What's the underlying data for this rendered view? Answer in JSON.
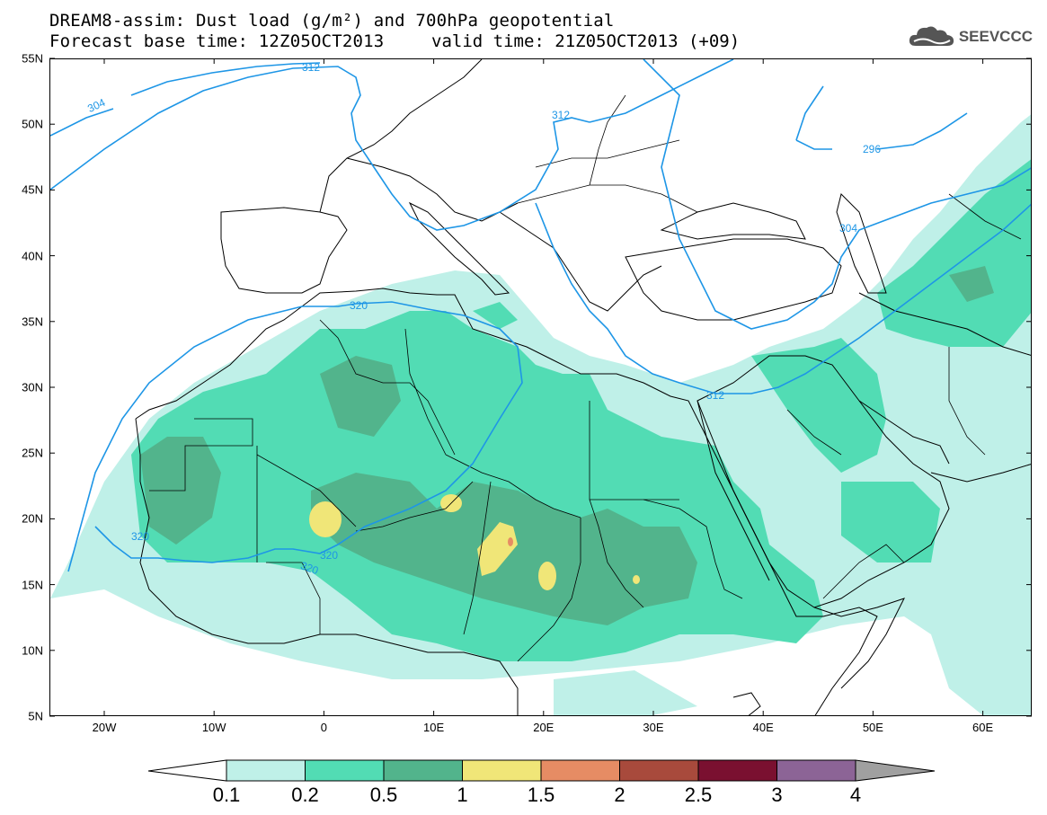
{
  "header": {
    "title_line1": "DREAM8-assim: Dust load (g/m²) and 700hPa geopotential",
    "title_line2_left": "Forecast base time: 12Z05OCT2013",
    "title_line2_right": "valid time: 21Z05OCT2013 (+09)",
    "logo_text": "SEEVCCC"
  },
  "axes": {
    "lat_labels": [
      "55N",
      "50N",
      "45N",
      "40N",
      "35N",
      "30N",
      "25N",
      "20N",
      "15N",
      "10N",
      "5N"
    ],
    "lon_labels": [
      "20W",
      "10W",
      "0",
      "10E",
      "20E",
      "30E",
      "40E",
      "50E",
      "60E"
    ]
  },
  "contours": {
    "labels": [
      "312",
      "304",
      "312",
      "296",
      "304",
      "320",
      "312",
      "320",
      "320",
      "320"
    ]
  },
  "colorbar": {
    "labels": [
      "0.1",
      "0.2",
      "0.5",
      "1",
      "1.5",
      "2",
      "2.5",
      "3",
      "4"
    ],
    "colors": [
      "#bff0e8",
      "#52dcb4",
      "#52b48c",
      "#f0e678",
      "#e68c64",
      "#a84a3c",
      "#7a1030",
      "#8c6496",
      "#a0a0a0"
    ]
  },
  "map_colors": {
    "low": "#bff0e8",
    "mid": "#52dcb4",
    "high": "#52b48c",
    "very_high": "#f0e678",
    "peak": "#e68c64",
    "contour": "#1e96e6"
  }
}
